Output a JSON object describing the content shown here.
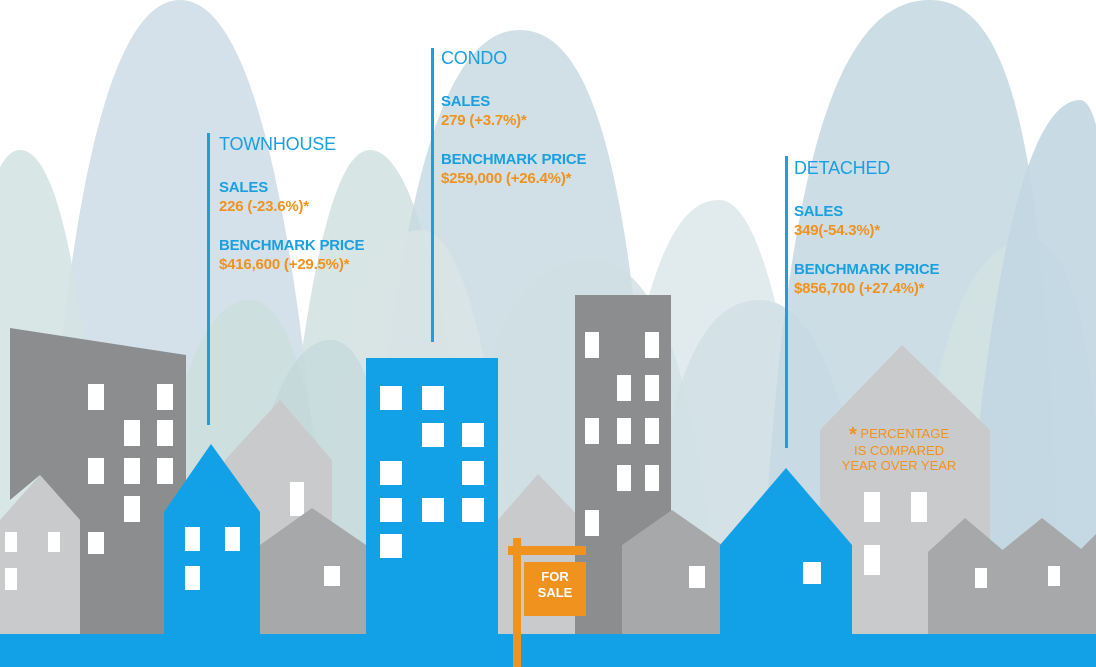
{
  "categories": [
    {
      "title": "TOWNHOUSE",
      "sales_label": "SALES",
      "sales_value": "226 (-23.6%)*",
      "price_label": "BENCHMARK PRICE",
      "price_value": "$416,600 (+29.5%)*"
    },
    {
      "title": "CONDO",
      "sales_label": "SALES",
      "sales_value": "279 (+3.7%)*",
      "price_label": "BENCHMARK PRICE",
      "price_value": "$259,000 (+26.4%)*"
    },
    {
      "title": "DETACHED",
      "sales_label": "SALES",
      "sales_value": "349(-54.3%)*",
      "price_label": "BENCHMARK PRICE",
      "price_value": "$856,700 (+27.4%)*"
    }
  ],
  "footnote": {
    "star": "*",
    "line1": "PERCENTAGE",
    "line2": "IS COMPARED",
    "line3": "YEAR OVER YEAR"
  },
  "sign": {
    "line1": "FOR",
    "line2": "SALE"
  },
  "colors": {
    "accent_blue": "#1aa0e0",
    "accent_orange": "#f0921e",
    "building_dark_gray": "#8c8d8f",
    "building_light_gray": "#c9cacb",
    "building_blue": "#12a1e6"
  }
}
